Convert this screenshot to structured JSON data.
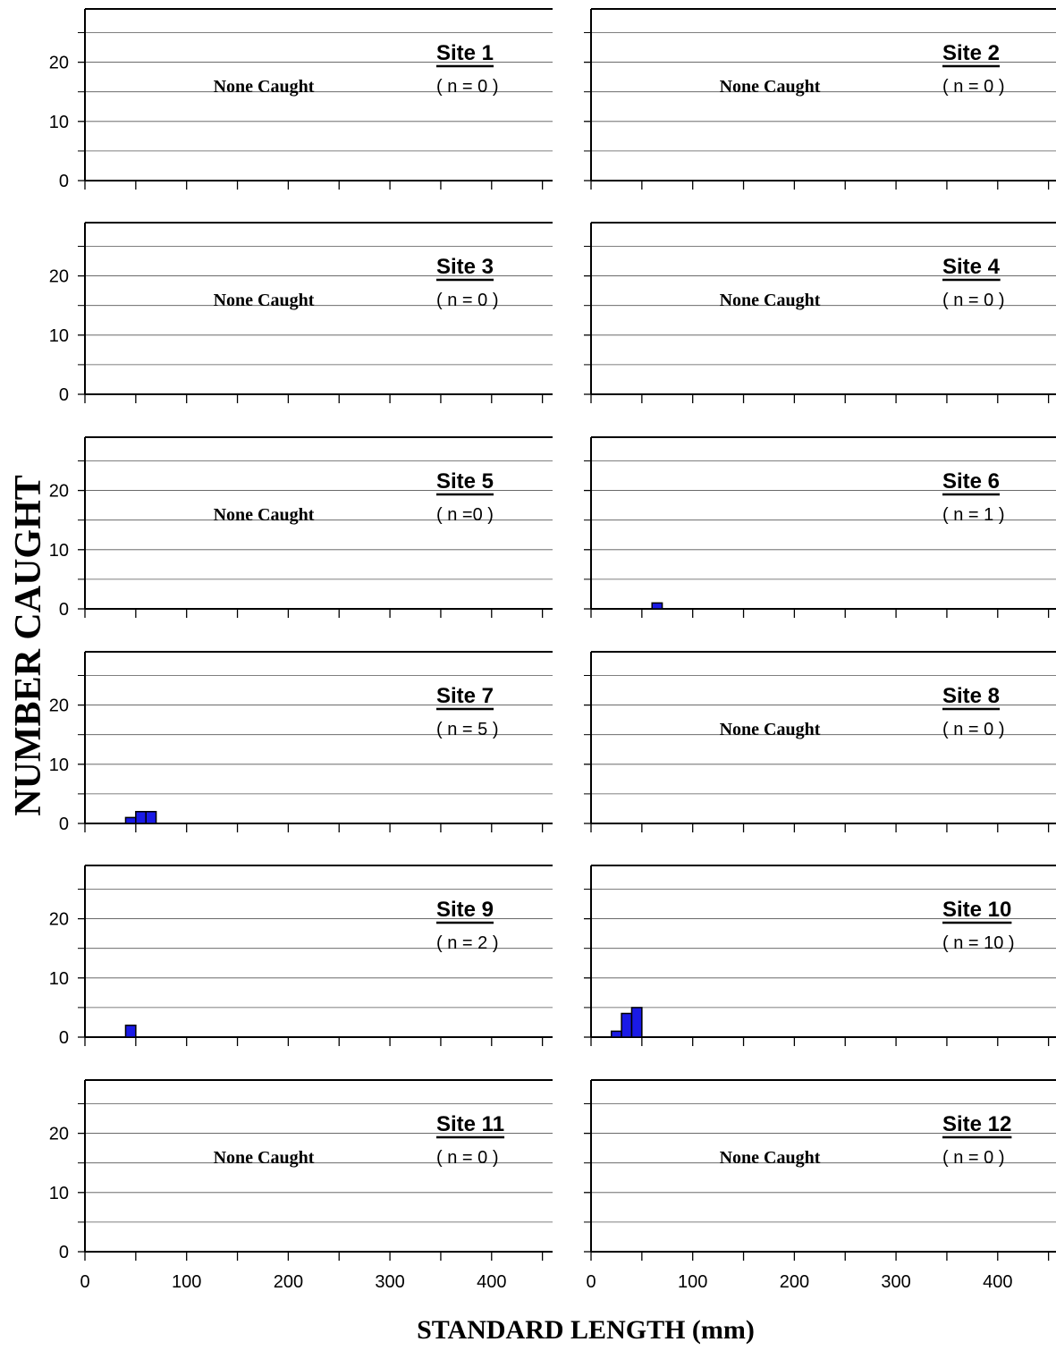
{
  "figure": {
    "ylabel": "NUMBER CAUGHT",
    "xlabel": "STANDARD LENGTH (mm)",
    "none_caught_label": "None Caught"
  },
  "chart_data": {
    "type": "bar",
    "xlim": [
      0,
      460
    ],
    "ylim": [
      0,
      29
    ],
    "x_ticks": [
      0,
      100,
      200,
      300,
      400
    ],
    "y_ticks": [
      0,
      10,
      20
    ],
    "grid": "horizontal",
    "bar_color": "#1a1ae6",
    "bin_width": 10,
    "panels": [
      {
        "title": "Site 1",
        "n_label": "( n = 0 )",
        "none_caught": true,
        "bars": []
      },
      {
        "title": "Site 2",
        "n_label": "( n = 0 )",
        "none_caught": true,
        "bars": []
      },
      {
        "title": "Site 3",
        "n_label": "( n = 0 )",
        "none_caught": true,
        "bars": []
      },
      {
        "title": "Site 4",
        "n_label": "( n = 0 )",
        "none_caught": true,
        "bars": []
      },
      {
        "title": "Site 5",
        "n_label": "( n =0 )",
        "none_caught": true,
        "bars": []
      },
      {
        "title": "Site 6",
        "n_label": "( n = 1 )",
        "none_caught": false,
        "bars": [
          {
            "x": 60,
            "count": 1
          }
        ]
      },
      {
        "title": "Site 7",
        "n_label": "( n = 5 )",
        "none_caught": false,
        "bars": [
          {
            "x": 40,
            "count": 1
          },
          {
            "x": 50,
            "count": 2
          },
          {
            "x": 60,
            "count": 2
          }
        ]
      },
      {
        "title": "Site 8",
        "n_label": "( n = 0 )",
        "none_caught": true,
        "bars": []
      },
      {
        "title": "Site 9",
        "n_label": "( n = 2 )",
        "none_caught": false,
        "bars": [
          {
            "x": 40,
            "count": 2
          }
        ]
      },
      {
        "title": "Site 10",
        "n_label": "( n = 10 )",
        "none_caught": false,
        "bars": [
          {
            "x": 20,
            "count": 1
          },
          {
            "x": 30,
            "count": 4
          },
          {
            "x": 40,
            "count": 5
          }
        ]
      },
      {
        "title": "Site 11",
        "n_label": "( n = 0 )",
        "none_caught": true,
        "bars": []
      },
      {
        "title": "Site 12",
        "n_label": "( n = 0 )",
        "none_caught": true,
        "bars": []
      }
    ]
  }
}
